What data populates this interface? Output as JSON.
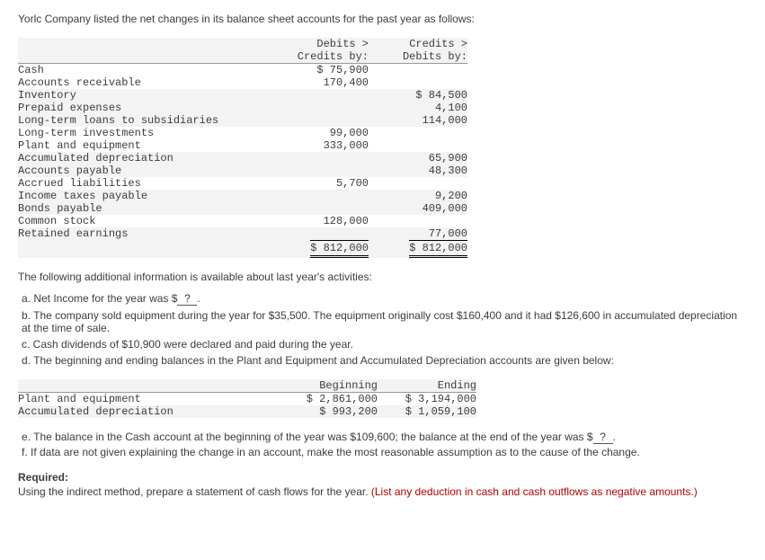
{
  "intro": "Yorlc Company listed the net changes in its balance sheet accounts for the past year as follows:",
  "table1": {
    "headers": {
      "debit1": "Debits >",
      "debit2": "Credits by:",
      "credit1": "Credits >",
      "credit2": "Debits by:"
    },
    "rows": [
      {
        "label": "Cash",
        "debit": "$ 75,900",
        "credit": ""
      },
      {
        "label": "Accounts receivable",
        "debit": "170,400",
        "credit": ""
      },
      {
        "label": "Inventory",
        "debit": "",
        "credit": "$ 84,500"
      },
      {
        "label": "Prepaid expenses",
        "debit": "",
        "credit": "4,100"
      },
      {
        "label": "Long-term loans to subsidiaries",
        "debit": "",
        "credit": "114,000"
      },
      {
        "label": "Long-term investments",
        "debit": "99,000",
        "credit": ""
      },
      {
        "label": "Plant and equipment",
        "debit": "333,000",
        "credit": ""
      },
      {
        "label": "Accumulated depreciation",
        "debit": "",
        "credit": "65,900"
      },
      {
        "label": "Accounts payable",
        "debit": "",
        "credit": "48,300"
      },
      {
        "label": "Accrued liabilities",
        "debit": "5,700",
        "credit": ""
      },
      {
        "label": "Income taxes payable",
        "debit": "",
        "credit": "9,200"
      },
      {
        "label": "Bonds payable",
        "debit": "",
        "credit": "409,000"
      },
      {
        "label": "Common stock",
        "debit": "128,000",
        "credit": ""
      },
      {
        "label": "Retained earnings",
        "debit": "",
        "credit": "77,000"
      }
    ],
    "totals": {
      "debit": "$ 812,000",
      "credit": "$ 812,000"
    }
  },
  "follow": "The following additional information is available about last year's activities:",
  "infoA_pre": "a. Net Income for the year was $",
  "infoA_blank": "?",
  "infoA_post": ".",
  "infoB": "b. The company sold equipment during the year for $35,500. The equipment originally cost $160,400 and it had $126,600 in accumulated depreciation at the time of sale.",
  "infoC": "c. Cash dividends of $10,900 were declared and paid during the year.",
  "infoD": "d. The beginning and ending balances in the Plant and Equipment and Accumulated Depreciation accounts are given below:",
  "table2": {
    "headers": {
      "beg": "Beginning",
      "end": "Ending"
    },
    "rows": [
      {
        "label": "Plant and equipment",
        "beg": "$ 2,861,000",
        "end": "$ 3,194,000"
      },
      {
        "label": "Accumulated depreciation",
        "beg": "$ 993,200",
        "end": "$ 1,059,100"
      }
    ]
  },
  "infoE_pre": "e. The balance in the Cash account at the beginning of the year was $109,600; the balance at the end of the year was $",
  "infoE_blank": "?",
  "infoE_post": ".",
  "infoF": "f. If data are not given explaining the change in an account, make the most reasonable assumption as to the cause of the change.",
  "required": {
    "label": "Required:",
    "text": "Using the indirect method, prepare a statement of cash flows for the year. ",
    "red": "(List any deduction in cash and cash outflows as negative amounts.)"
  }
}
